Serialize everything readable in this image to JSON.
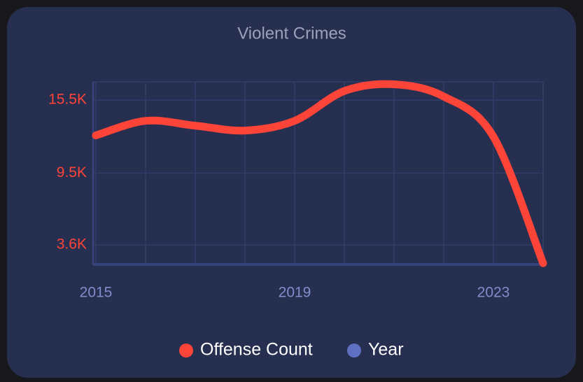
{
  "chart_data": {
    "type": "line",
    "title": "Violent Crimes",
    "x": [
      2015,
      2016,
      2017,
      2018,
      2019,
      2020,
      2021,
      2022,
      2023,
      2024
    ],
    "series": [
      {
        "name": "Offense Count",
        "color": "#fd4438",
        "values": [
          12600,
          13800,
          13400,
          13000,
          13800,
          16250,
          16800,
          15800,
          12500,
          2100
        ]
      }
    ],
    "legend_extra": {
      "name": "Year",
      "color": "#5f6fc2"
    },
    "xlim": [
      2015,
      2024
    ],
    "xticks": [
      2015,
      2019,
      2023
    ],
    "ylim": [
      2000,
      17000
    ],
    "yticks": [
      {
        "value": 3600,
        "label": "3.6K"
      },
      {
        "value": 9500,
        "label": "9.5K"
      },
      {
        "value": 15500,
        "label": "15.5K"
      }
    ],
    "grid": true
  }
}
